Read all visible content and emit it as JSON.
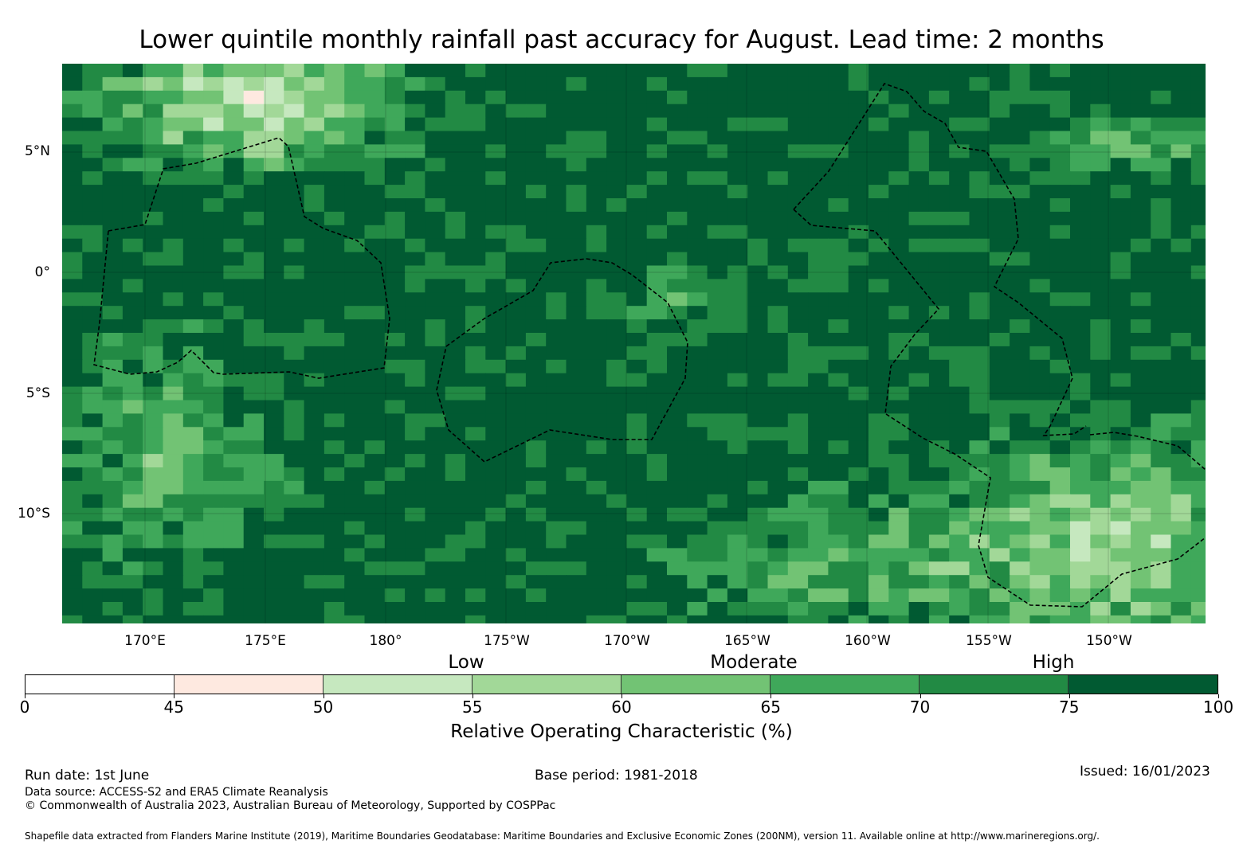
{
  "title": "Lower quintile monthly rainfall past accuracy for August. Lead time: 2 months",
  "map": {
    "lat_labels": [
      "5°N",
      "0°",
      "5°S",
      "10°S"
    ],
    "lon_labels": [
      "170°E",
      "175°E",
      "180°",
      "175°W",
      "170°W",
      "165°W",
      "160°W",
      "155°W",
      "150°W"
    ],
    "extent": {
      "lon_min": 166.6,
      "lon_max": 213.9,
      "lat_min": -14.4,
      "lat_max": 8.6
    },
    "eez_boundaries": "dashed black lines"
  },
  "legend": {
    "class_labels": [
      "Low",
      "Moderate",
      "High"
    ],
    "ticks": [
      "0",
      "45",
      "50",
      "55",
      "60",
      "65",
      "70",
      "75",
      "100"
    ],
    "bins": [
      {
        "from": 0,
        "to": 45,
        "color": "#ffffff"
      },
      {
        "from": 45,
        "to": 50,
        "color": "#fee9e0"
      },
      {
        "from": 50,
        "to": 55,
        "color": "#c6e8bf"
      },
      {
        "from": 55,
        "to": 60,
        "color": "#a2d898"
      },
      {
        "from": 60,
        "to": 65,
        "color": "#72c374"
      },
      {
        "from": 65,
        "to": 70,
        "color": "#3fa85a"
      },
      {
        "from": 70,
        "to": 75,
        "color": "#228a44"
      },
      {
        "from": 75,
        "to": 100,
        "color": "#015a32"
      }
    ],
    "label": "Relative Operating Characteristic (%)"
  },
  "footer": {
    "run_date": "Run date: 1st June",
    "base_period": "Base period: 1981-2018",
    "issued": "Issued: 16/01/2023",
    "data_source": "Data source: ACCESS-S2 and ERA5 Climate Reanalysis",
    "copyright": "© Commonwealth of Australia 2023, Australian Bureau of Meteorology, Supported by COSPPac",
    "shapefile": "Shapefile data extracted from Flanders Marine Institute (2019), Maritime Boundaries Geodatabase: Maritime Boundaries and Exclusive Economic Zones (200NM), version 11. Available online at http://www.marineregions.org/."
  }
}
